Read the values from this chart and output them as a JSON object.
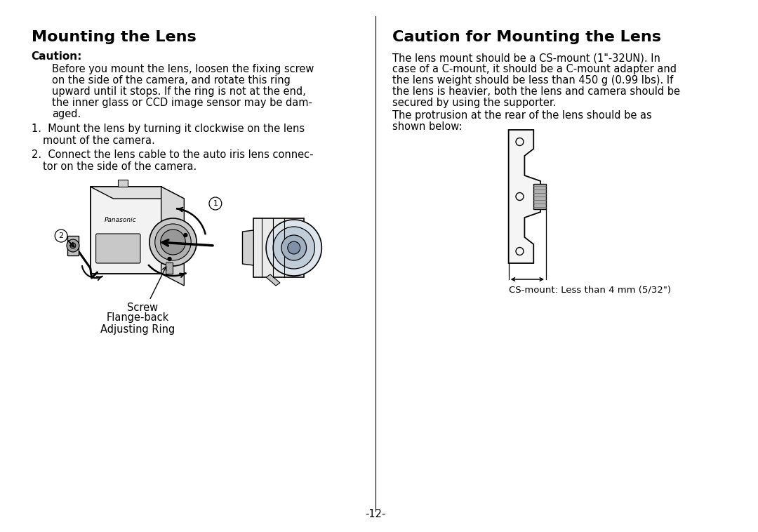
{
  "bg_color": "#ffffff",
  "left_title": "Mounting the Lens",
  "right_title": "Caution for Mounting the Lens",
  "caution_label": "Caution:",
  "cs_mount_label": "CS-mount: Less than 4 mm (5/32\")",
  "label_screw": "Screw",
  "label_flangeback": "Flange-back\nAdjusting Ring",
  "page_number": "-12-",
  "title_fontsize": 16,
  "body_fontsize": 10.5,
  "caution_fontsize": 11
}
